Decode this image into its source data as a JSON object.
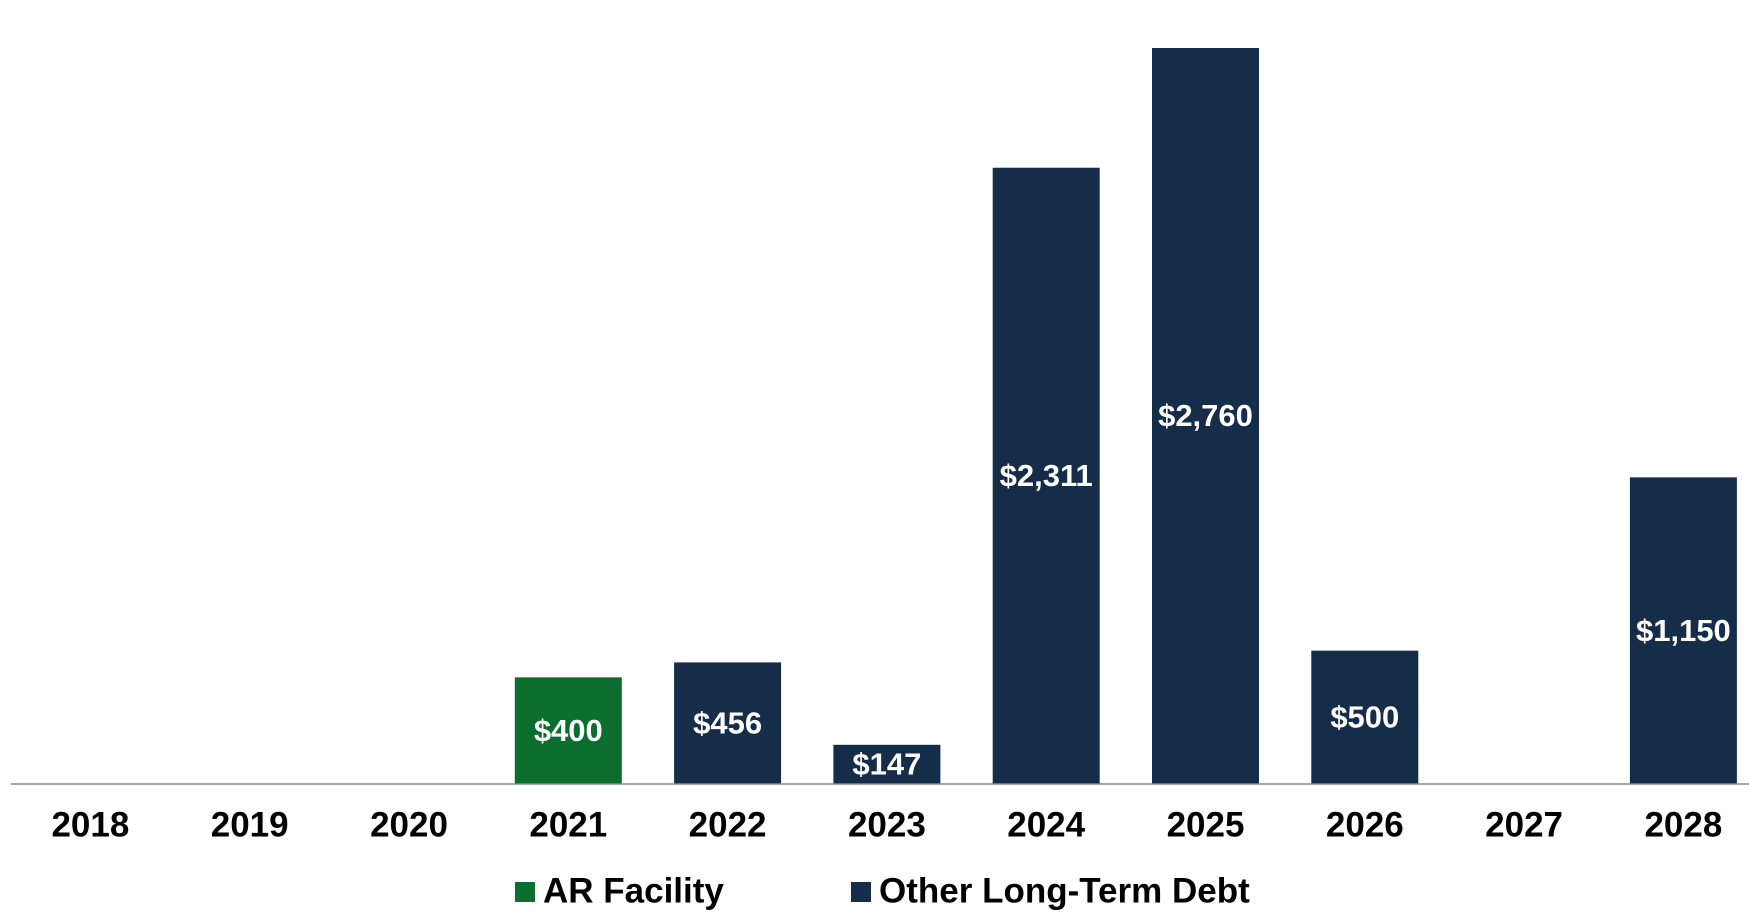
{
  "chart_data": {
    "type": "stacked_bar",
    "categories": [
      "2018",
      "2019",
      "2020",
      "2021",
      "2022",
      "2023",
      "2024",
      "2025",
      "2026",
      "2027",
      "2028"
    ],
    "series": [
      {
        "name": "AR Facility",
        "color": "#0b6e2e",
        "values": [
          null,
          null,
          null,
          400,
          null,
          null,
          null,
          null,
          null,
          null,
          null
        ],
        "value_labels": [
          null,
          null,
          null,
          "$400",
          null,
          null,
          null,
          null,
          null,
          null,
          null
        ]
      },
      {
        "name": "Other Long-Term Debt",
        "color": "#162d4a",
        "values": [
          null,
          null,
          null,
          null,
          456,
          147,
          2311,
          2760,
          500,
          null,
          1150
        ],
        "value_labels": [
          null,
          null,
          null,
          null,
          "$456",
          "$147",
          "$2,311",
          "$2,760",
          "$500",
          null,
          "$1,150"
        ]
      }
    ],
    "ylim": [
      0,
      2940
    ]
  }
}
